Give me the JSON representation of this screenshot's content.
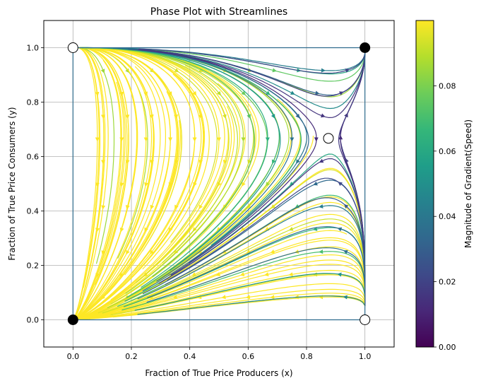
{
  "chart_data": {
    "type": "streamplot",
    "title": "Phase Plot with Streamlines",
    "xlabel": "Fraction of True Price Producers (x)",
    "ylabel": "Fraction of True Price Consumers (y)",
    "xlim": [
      -0.1,
      1.1
    ],
    "ylim": [
      -0.1,
      1.1
    ],
    "x_ticks": [
      0.0,
      0.2,
      0.4,
      0.6,
      0.8,
      1.0
    ],
    "y_ticks": [
      0.0,
      0.2,
      0.4,
      0.6,
      0.8,
      1.0
    ],
    "x_tick_labels": [
      "0.0",
      "0.2",
      "0.4",
      "0.6",
      "0.8",
      "1.0"
    ],
    "y_tick_labels": [
      "0.0",
      "0.2",
      "0.4",
      "0.6",
      "0.8",
      "1.0"
    ],
    "grid": true,
    "colormap": "viridis",
    "colorbar": {
      "label": "Magnitude of Gradient(Speed)",
      "min": 0.0,
      "max": 0.1,
      "ticks": [
        0.0,
        0.02,
        0.04,
        0.06,
        0.08
      ],
      "tick_labels": [
        "0.00",
        "0.02",
        "0.04",
        "0.06",
        "0.08"
      ]
    },
    "equilibria": [
      {
        "x": 0.0,
        "y": 0.0,
        "stable": true
      },
      {
        "x": 1.0,
        "y": 1.0,
        "stable": true
      },
      {
        "x": 0.0,
        "y": 1.0,
        "stable": false
      },
      {
        "x": 1.0,
        "y": 0.0,
        "stable": false
      },
      {
        "x": 0.875,
        "y": 0.667,
        "stable": false
      }
    ]
  }
}
